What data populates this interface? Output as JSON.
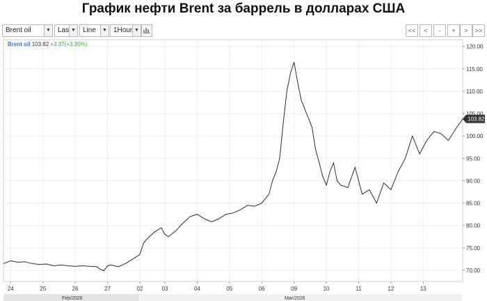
{
  "page": {
    "title": "График нефти Brent за баррель в долларах США"
  },
  "toolbar": {
    "instrument": "Brent oil",
    "price_field": "Last",
    "chart_style": "Line",
    "interval": "1Hour",
    "chart_icon": "bar-chart-icon",
    "nav": [
      "<<",
      "<",
      "-",
      "+",
      ">",
      ">>"
    ]
  },
  "legend": {
    "name": "Brent oil",
    "last": "103.82",
    "change": "+3.37",
    "change_pct": "(+3.35%)"
  },
  "chart_data": {
    "type": "line",
    "ylim": [
      67.5,
      121.5
    ],
    "y_ticks": [
      70,
      75,
      80,
      85,
      90,
      95,
      100,
      105,
      110,
      115,
      120
    ],
    "y_tick_labels": [
      "70.00",
      "75.00",
      "80.00",
      "85.00",
      "90.00",
      "95.00",
      "100.00",
      "105.00",
      "110.00",
      "115.00",
      "120.00"
    ],
    "x_ticks": [
      1,
      5.5,
      10,
      14.5,
      19,
      22.5,
      27,
      31.5,
      36,
      40.5,
      45,
      49.5,
      54,
      58.5
    ],
    "x_tick_labels": [
      "24",
      "25",
      "26",
      "27",
      "02",
      "03",
      "04",
      "05",
      "06",
      "09",
      "10",
      "11",
      "12",
      "13"
    ],
    "months": [
      {
        "label": "Feb/2026",
        "start": 0,
        "end": 19
      },
      {
        "label": "Mar/2026",
        "start": 19,
        "end": 64
      }
    ],
    "x": [
      0,
      1,
      2,
      3,
      4,
      5,
      6,
      7,
      8,
      9,
      10,
      11,
      12,
      13,
      13.5,
      14,
      14.5,
      15,
      16,
      17,
      18,
      19,
      19.5,
      20,
      21,
      22,
      22.5,
      23,
      24,
      25,
      26,
      27,
      28,
      29,
      30,
      31,
      32,
      33,
      34,
      35,
      36,
      37,
      37.5,
      38,
      38.5,
      39,
      39.5,
      40,
      40.5,
      41,
      41.5,
      42,
      42.5,
      43,
      43.5,
      44,
      44.5,
      45,
      45.5,
      46,
      46.5,
      47,
      48,
      49,
      50,
      51,
      52,
      53,
      54,
      55,
      56,
      57,
      58,
      59,
      60,
      61,
      62,
      63,
      64
    ],
    "y": [
      71.5,
      72.1,
      71.8,
      71.9,
      71.5,
      71.3,
      71.4,
      71,
      71.2,
      71,
      70.9,
      71,
      70.9,
      70.8,
      70.2,
      69.9,
      71,
      71.2,
      70.8,
      71.5,
      72.5,
      73.5,
      76,
      77,
      78.5,
      79.5,
      78,
      77.5,
      78.8,
      80.5,
      82,
      82.5,
      81.5,
      80.8,
      81.5,
      82.5,
      82.8,
      83.5,
      84.5,
      84.3,
      85,
      87,
      90,
      92,
      95,
      103,
      110,
      114,
      116.5,
      112,
      108,
      106,
      104,
      102,
      97,
      94,
      91,
      89,
      92,
      94,
      90,
      89,
      88.5,
      93,
      87,
      88,
      85,
      89.5,
      88,
      92,
      95,
      100,
      96,
      99,
      101,
      100.5,
      99,
      101.5,
      103.82
    ],
    "series": [
      {
        "values": [
          71.5,
          72.1,
          71.8,
          71.9,
          71.5,
          71.3,
          71.4,
          71,
          71.2,
          71,
          70.9,
          71,
          70.9,
          70.8,
          70.2,
          69.9,
          71,
          71.2,
          70.8,
          71.5,
          72.5,
          73.5,
          76,
          77,
          78.5,
          79.5,
          78,
          77.5,
          78.8,
          80.5,
          82,
          82.5,
          81.5,
          80.8,
          81.5,
          82.5,
          82.8,
          83.5,
          84.5,
          84.3,
          85,
          87,
          90,
          92,
          95,
          103,
          110,
          114,
          116.5,
          112,
          108,
          106,
          104,
          102,
          97,
          94,
          91,
          89,
          92,
          94,
          90,
          89,
          88.5,
          93,
          87,
          88,
          85,
          89.5,
          88,
          92,
          95,
          100,
          96,
          99,
          101,
          100.5,
          99,
          101.5,
          103.82
        ]
      }
    ],
    "last_value_label": "103.82",
    "grid": true,
    "legend_position": "top-left"
  }
}
